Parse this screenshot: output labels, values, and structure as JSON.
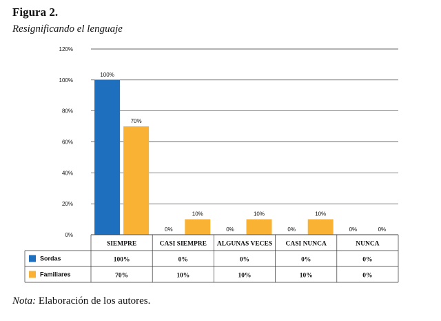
{
  "figure": {
    "label": "Figura 2.",
    "subtitle": "Resignificando el lenguaje",
    "note_prefix": "Nota:",
    "note_text": " Elaboración de los autores."
  },
  "chart_data": {
    "type": "bar",
    "categories": [
      "SIEMPRE",
      "CASI SIEMPRE",
      "ALGUNAS VECES",
      "CASI NUNCA",
      "NUNCA"
    ],
    "series": [
      {
        "name": "Sordas",
        "values": [
          100,
          0,
          0,
          0,
          0
        ],
        "labels": [
          "100%",
          "0%",
          "0%",
          "0%",
          "0%"
        ],
        "table_values": [
          "100%",
          "0%",
          "0%",
          "0%",
          "0%"
        ],
        "color": "#1f6fbf"
      },
      {
        "name": "Familiares",
        "values": [
          70,
          10,
          10,
          10,
          0
        ],
        "labels": [
          "70%",
          "10%",
          "10%",
          "10%",
          "0%"
        ],
        "table_values": [
          "70%",
          "10%",
          "10%",
          "10%",
          "0%"
        ],
        "color": "#f9b233"
      }
    ],
    "yticks": [
      "0%",
      "20%",
      "40%",
      "60%",
      "80%",
      "100%",
      "120%"
    ],
    "ylim": [
      0,
      120
    ],
    "grid": true,
    "legend": "data-table"
  }
}
